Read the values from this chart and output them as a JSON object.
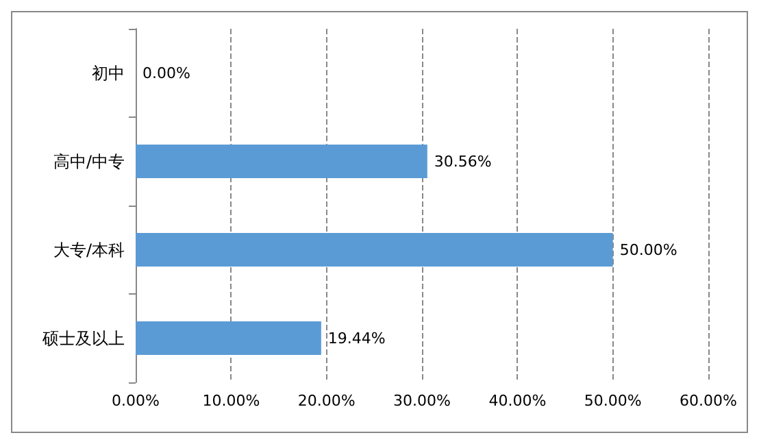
{
  "chart_data": {
    "type": "bar",
    "orientation": "horizontal",
    "categories": [
      "初中",
      "高中/中专",
      "大专/本科",
      "硕士及以上"
    ],
    "values": [
      0,
      30.56,
      50,
      19.44
    ],
    "value_labels": [
      "0.00%",
      "30.56%",
      "50.00%",
      "19.44%"
    ],
    "color": "#5b9bd5",
    "xlim": [
      0,
      60
    ],
    "xticks": [
      {
        "value": 0,
        "label": "0.00%"
      },
      {
        "value": 10,
        "label": "10.00%"
      },
      {
        "value": 20,
        "label": "20.00%"
      },
      {
        "value": 30,
        "label": "30.00%"
      },
      {
        "value": 40,
        "label": "40.00%"
      },
      {
        "value": 50,
        "label": "50.00%"
      },
      {
        "value": 60,
        "label": "60.00%"
      }
    ],
    "grid": "x"
  }
}
